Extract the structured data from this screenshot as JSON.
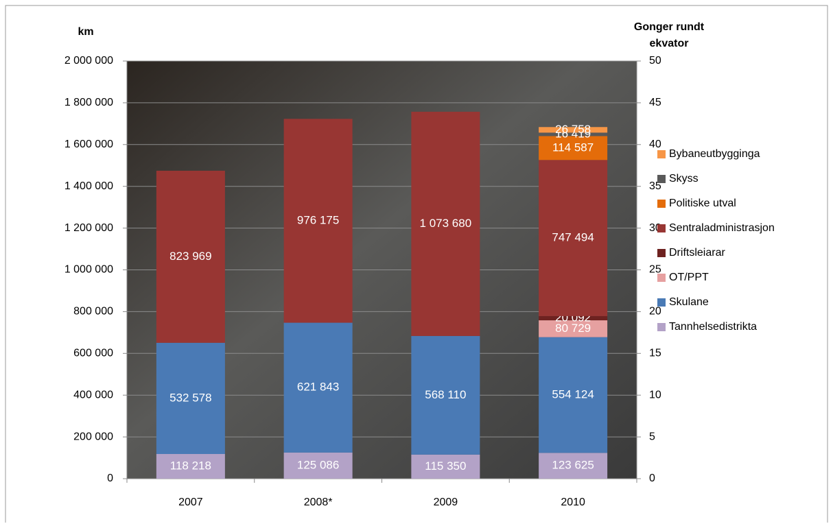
{
  "chart_data": {
    "type": "stacked_bar",
    "ylabel": "km",
    "y2label": [
      "Gonger rundt",
      "ekvator"
    ],
    "categories": [
      "2007",
      "2008*",
      "2009",
      "2010"
    ],
    "series": [
      {
        "name": "Tannhelsedistrikta",
        "color": "#b3a2c7",
        "values": [
          118218,
          125086,
          115350,
          123625
        ],
        "value_labels": [
          "118 218",
          "125 086",
          "115 350",
          "123 625"
        ]
      },
      {
        "name": "Skulane",
        "color": "#4a7ab5",
        "values": [
          532578,
          621843,
          568110,
          554124
        ],
        "value_labels": [
          "532 578",
          "621 843",
          "568 110",
          "554 124"
        ]
      },
      {
        "name": "OT/PPT",
        "color": "#e6a0a0",
        "values": [
          null,
          null,
          null,
          80729
        ],
        "value_labels": [
          null,
          null,
          null,
          "80 729"
        ]
      },
      {
        "name": "Driftsleiarar",
        "color": "#6e2220",
        "values": [
          null,
          null,
          null,
          20092
        ],
        "value_labels": [
          null,
          null,
          null,
          "20 092"
        ]
      },
      {
        "name": "Sentraladministrasjon",
        "color": "#983633",
        "values": [
          823969,
          976175,
          1073680,
          747494
        ],
        "value_labels": [
          "823 969",
          "976 175",
          "1 073 680",
          "747 494"
        ]
      },
      {
        "name": "Politiske utval",
        "color": "#e46c0a",
        "values": [
          null,
          null,
          null,
          114587
        ],
        "value_labels": [
          null,
          null,
          null,
          "114 587"
        ]
      },
      {
        "name": "Skyss",
        "color": "#595959",
        "values": [
          null,
          null,
          null,
          16419
        ],
        "value_labels": [
          null,
          null,
          null,
          "16 419"
        ]
      },
      {
        "name": "Bybaneutbygginga",
        "color": "#f79646",
        "values": [
          null,
          null,
          null,
          26758
        ],
        "value_labels": [
          null,
          null,
          null,
          "26 758"
        ]
      }
    ],
    "ylim": [
      0,
      2000000
    ],
    "yticks": [
      {
        "value": 0,
        "label": "0"
      },
      {
        "value": 200000,
        "label": "200 000"
      },
      {
        "value": 400000,
        "label": "400 000"
      },
      {
        "value": 600000,
        "label": "600 000"
      },
      {
        "value": 800000,
        "label": "800 000"
      },
      {
        "value": 1000000,
        "label": "1 000 000"
      },
      {
        "value": 1200000,
        "label": "1 200 000"
      },
      {
        "value": 1400000,
        "label": "1 400 000"
      },
      {
        "value": 1600000,
        "label": "1 600 000"
      },
      {
        "value": 1800000,
        "label": "1 800 000"
      },
      {
        "value": 2000000,
        "label": "2 000 000"
      }
    ],
    "y2lim": [
      0,
      50
    ],
    "y2ticks": [
      0,
      5,
      10,
      15,
      20,
      25,
      30,
      35,
      40,
      45,
      50
    ],
    "grid": true
  }
}
